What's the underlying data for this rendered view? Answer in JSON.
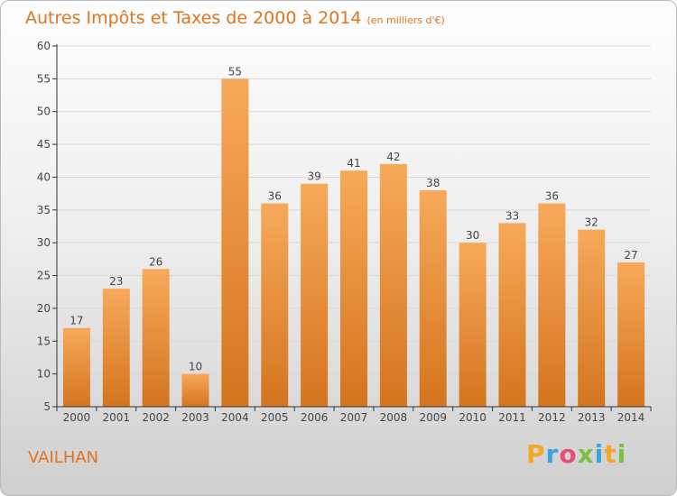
{
  "title": "Autres Impôts et Taxes de 2000 à 2014",
  "subtitle": "(en milliers d'€)",
  "location": "VAILHAN",
  "logo": {
    "letters": [
      "P",
      "r",
      "o",
      "x",
      "i",
      "t",
      "i"
    ],
    "colors": [
      "#f5a623",
      "#3aa3e3",
      "#e94e77",
      "#7bc043",
      "#3aa3e3",
      "#f5a623",
      "#7bc043"
    ]
  },
  "colors": {
    "bar": "#f0923a",
    "bar_light": "#f7a95a",
    "bar_dark": "#d4741e",
    "text_accent": "#e0741f",
    "grid": "#d9d9d9"
  },
  "chart_data": {
    "type": "bar",
    "categories": [
      "2000",
      "2001",
      "2002",
      "2003",
      "2004",
      "2005",
      "2006",
      "2007",
      "2008",
      "2009",
      "2010",
      "2011",
      "2012",
      "2013",
      "2014"
    ],
    "values": [
      17,
      23,
      26,
      10,
      55,
      36,
      39,
      41,
      42,
      38,
      30,
      33,
      36,
      32,
      27
    ],
    "ylim": [
      5,
      60
    ],
    "yticks": [
      5,
      10,
      15,
      20,
      25,
      30,
      35,
      40,
      45,
      50,
      55,
      60
    ],
    "grid": true,
    "data_labels": true
  }
}
